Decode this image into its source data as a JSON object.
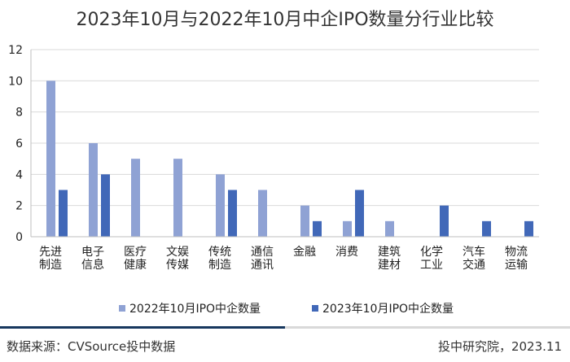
{
  "chart_data": {
    "type": "bar",
    "title": "2023年10月与2022年10月中企IPO数量分行业比较",
    "categories": [
      "先进制造",
      "电子信息",
      "医疗健康",
      "文娱传媒",
      "传统制造",
      "通信通讯",
      "金融",
      "消费",
      "建筑建材",
      "化学工业",
      "汽车交通",
      "物流运输"
    ],
    "series": [
      {
        "name": "2022年10月IPO中企数量",
        "values": [
          10,
          6,
          5,
          5,
          4,
          3,
          2,
          1,
          1,
          0,
          0,
          0
        ],
        "color": "#8fa2d4"
      },
      {
        "name": "2023年10月IPO中企数量",
        "values": [
          3,
          4,
          0,
          0,
          3,
          0,
          1,
          3,
          0,
          2,
          1,
          1
        ],
        "color": "#4168b8"
      }
    ],
    "ylim": [
      0,
      12
    ],
    "yticks": [
      0,
      2,
      4,
      6,
      8,
      10,
      12
    ],
    "grid": true,
    "legend_position": "bottom"
  },
  "footer": {
    "source": "数据来源：CVSource投中数据",
    "credit": "投中研究院，2023.11"
  }
}
